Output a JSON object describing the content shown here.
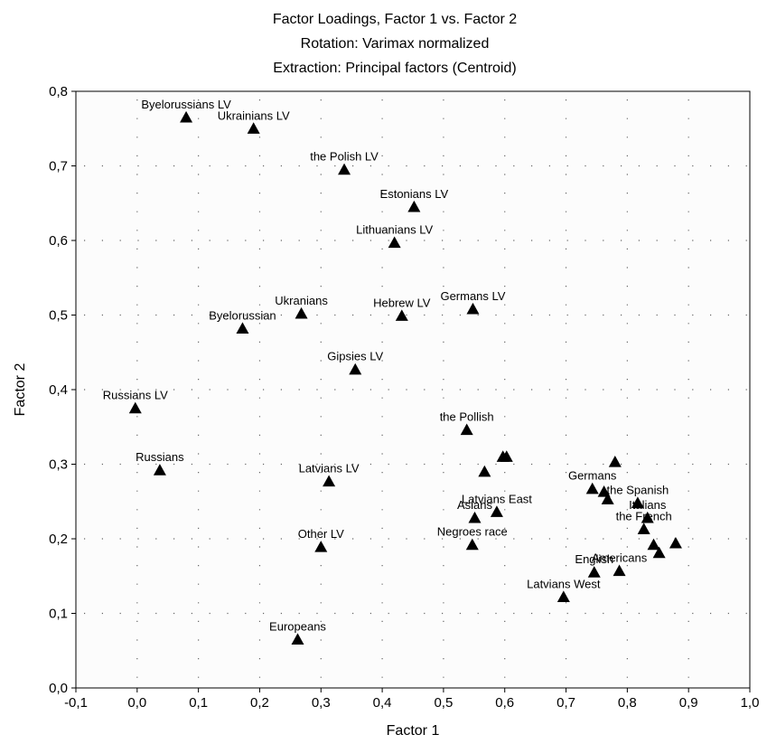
{
  "chart_data": {
    "type": "scatter",
    "title_lines": [
      "Factor Loadings, Factor 1 vs. Factor 2",
      "Rotation: Varimax normalized",
      "Extraction: Principal factors (Centroid)"
    ],
    "xlabel": "Factor 1",
    "ylabel": "Factor 2",
    "xlim": [
      -0.1,
      1.0
    ],
    "ylim": [
      0.0,
      0.8
    ],
    "xticks": [
      -0.1,
      0.0,
      0.1,
      0.2,
      0.3,
      0.4,
      0.5,
      0.6,
      0.7,
      0.8,
      0.9,
      1.0
    ],
    "yticks": [
      0.0,
      0.1,
      0.2,
      0.3,
      0.4,
      0.5,
      0.6,
      0.7,
      0.8
    ],
    "decimal_separator": ",",
    "grid": "dotted",
    "marker": "triangle",
    "marker_color": "#000000",
    "points": [
      {
        "label": "Byelorussians LV",
        "x": 0.08,
        "y": 0.765
      },
      {
        "label": "Ukrainians LV",
        "x": 0.19,
        "y": 0.75
      },
      {
        "label": "the Polish LV",
        "x": 0.338,
        "y": 0.695
      },
      {
        "label": "Estonians LV",
        "x": 0.452,
        "y": 0.645
      },
      {
        "label": "Lithuanians LV",
        "x": 0.42,
        "y": 0.597
      },
      {
        "label": "Germans LV",
        "x": 0.548,
        "y": 0.508
      },
      {
        "label": "Hebrew LV",
        "x": 0.432,
        "y": 0.499
      },
      {
        "label": "Ukranians",
        "x": 0.268,
        "y": 0.502
      },
      {
        "label": "Byelorussian",
        "x": 0.172,
        "y": 0.482
      },
      {
        "label": "Gipsies LV",
        "x": 0.356,
        "y": 0.427
      },
      {
        "label": "Russians LV",
        "x": -0.003,
        "y": 0.375
      },
      {
        "label": "the Pollish",
        "x": 0.538,
        "y": 0.346
      },
      {
        "label": "Russians",
        "x": 0.037,
        "y": 0.292
      },
      {
        "label": "Latvians LV",
        "x": 0.313,
        "y": 0.277
      },
      {
        "label": "",
        "x": 0.567,
        "y": 0.29
      },
      {
        "label": "",
        "x": 0.597,
        "y": 0.31
      },
      {
        "label": "",
        "x": 0.603,
        "y": 0.31
      },
      {
        "label": "Latvians East",
        "x": 0.587,
        "y": 0.236
      },
      {
        "label": "Asians",
        "x": 0.551,
        "y": 0.228
      },
      {
        "label": "Negroes race",
        "x": 0.547,
        "y": 0.192
      },
      {
        "label": "Other LV",
        "x": 0.3,
        "y": 0.189
      },
      {
        "label": "Europeans",
        "x": 0.262,
        "y": 0.065
      },
      {
        "label": "Latvians West",
        "x": 0.696,
        "y": 0.122
      },
      {
        "label": "Germans",
        "x": 0.743,
        "y": 0.267
      },
      {
        "label": "",
        "x": 0.78,
        "y": 0.303
      },
      {
        "label": "",
        "x": 0.762,
        "y": 0.263
      },
      {
        "label": "",
        "x": 0.768,
        "y": 0.253
      },
      {
        "label": "the Spanish",
        "x": 0.817,
        "y": 0.248
      },
      {
        "label": "Italians",
        "x": 0.833,
        "y": 0.228
      },
      {
        "label": "the French",
        "x": 0.827,
        "y": 0.213
      },
      {
        "label": "",
        "x": 0.843,
        "y": 0.192
      },
      {
        "label": "",
        "x": 0.852,
        "y": 0.181
      },
      {
        "label": "",
        "x": 0.879,
        "y": 0.194
      },
      {
        "label": "Americans",
        "x": 0.787,
        "y": 0.157
      },
      {
        "label": "English",
        "x": 0.746,
        "y": 0.155
      }
    ]
  }
}
